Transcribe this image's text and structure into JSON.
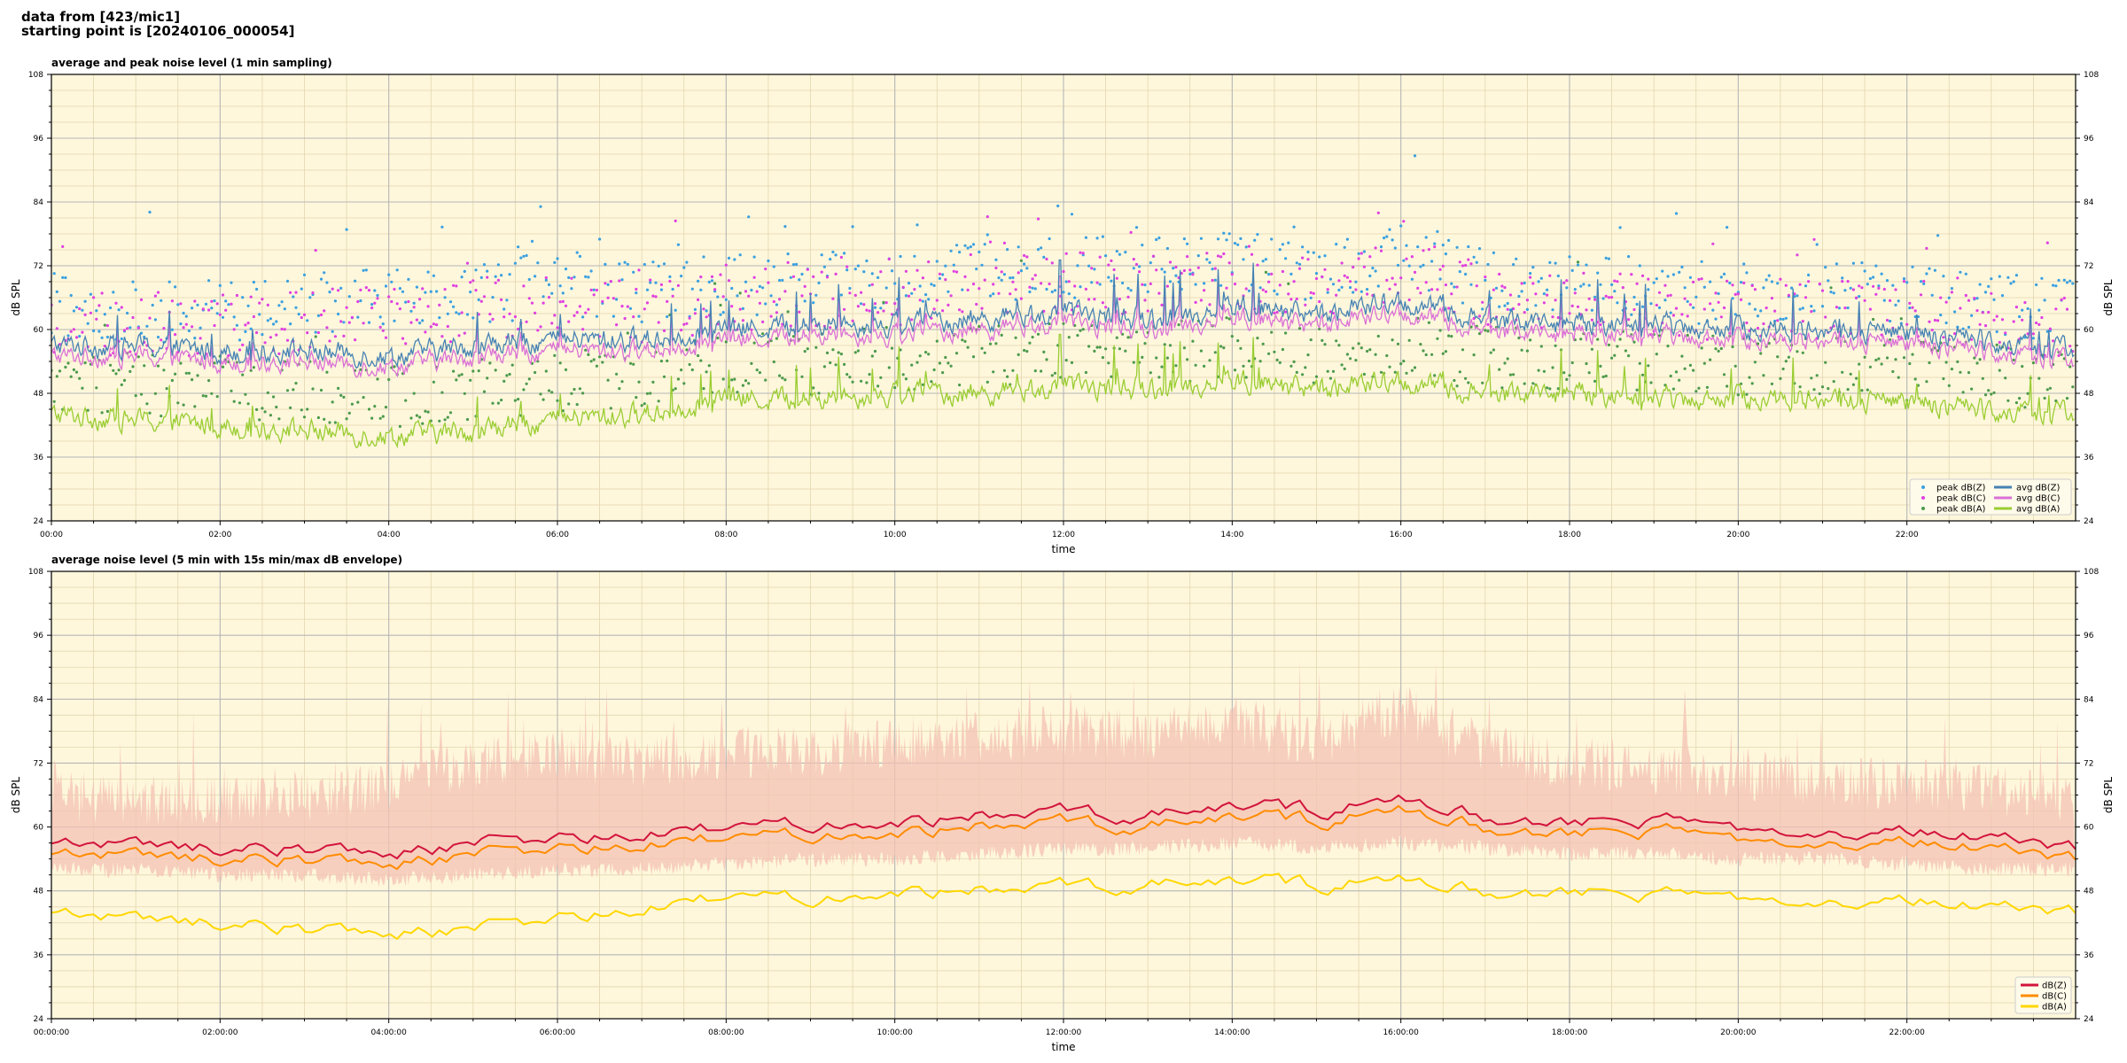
{
  "header": {
    "line1": "data from [423/mic1]",
    "line2": "starting point is [20240106_000054]"
  },
  "chart_data": [
    {
      "type": "line",
      "title": "average and peak noise level (1 min sampling)",
      "xlabel": "time",
      "ylabel": "dB SPL",
      "ylim": [
        24,
        108
      ],
      "xlim_hours": [
        0,
        24
      ],
      "yticks": [
        "24",
        "36",
        "48",
        "60",
        "72",
        "84",
        "96",
        "108"
      ],
      "xticks": [
        "00:00",
        "02:00",
        "04:00",
        "06:00",
        "08:00",
        "10:00",
        "12:00",
        "14:00",
        "16:00",
        "18:00",
        "20:00",
        "22:00"
      ],
      "grid": true,
      "background": "#fef7dc",
      "legend_position": "lower-right",
      "legend_columns": 2,
      "series": [
        {
          "name": "peak dB(Z)",
          "kind": "scatter",
          "color": "#3aa0e0",
          "x_hours": [
            0,
            1,
            2,
            3,
            4,
            5,
            6,
            7,
            8,
            9,
            10,
            11,
            12,
            13,
            14,
            15,
            16,
            17,
            18,
            19,
            20,
            21,
            22,
            23,
            24
          ],
          "values": [
            64,
            63,
            63,
            64,
            65,
            66,
            68,
            66,
            68,
            68,
            69,
            70,
            71,
            71,
            73,
            70,
            74,
            69,
            68,
            67,
            66,
            66,
            66,
            64,
            63
          ]
        },
        {
          "name": "peak dB(C)",
          "kind": "scatter",
          "color": "#e040e0",
          "x_hours": [
            0,
            1,
            2,
            3,
            4,
            5,
            6,
            7,
            8,
            9,
            10,
            11,
            12,
            13,
            14,
            15,
            16,
            17,
            18,
            19,
            20,
            21,
            22,
            23,
            24
          ],
          "values": [
            61,
            60,
            60,
            61,
            62,
            63,
            65,
            63,
            65,
            65,
            66,
            67,
            68,
            68,
            70,
            67,
            71,
            66,
            65,
            64,
            63,
            63,
            63,
            61,
            60
          ]
        },
        {
          "name": "peak dB(A)",
          "kind": "scatter",
          "color": "#4c9a4c",
          "x_hours": [
            0,
            1,
            2,
            3,
            4,
            5,
            6,
            7,
            8,
            9,
            10,
            11,
            12,
            13,
            14,
            15,
            16,
            17,
            18,
            19,
            20,
            21,
            22,
            23,
            24
          ],
          "values": [
            50,
            49,
            48,
            48,
            47,
            48,
            50,
            50,
            53,
            53,
            54,
            54,
            55,
            55,
            56,
            55,
            56,
            54,
            54,
            53,
            53,
            53,
            52,
            51,
            50
          ]
        },
        {
          "name": "avg dB(Z)",
          "kind": "line",
          "color": "#4682b4",
          "x_hours": [
            0,
            1,
            2,
            3,
            4,
            5,
            6,
            7,
            8,
            9,
            10,
            11,
            12,
            13,
            14,
            15,
            16,
            17,
            18,
            19,
            20,
            21,
            22,
            23,
            24
          ],
          "values": [
            57,
            57,
            56,
            56,
            55,
            57,
            58,
            58,
            60,
            61,
            61,
            62,
            63,
            62,
            64,
            63,
            65,
            62,
            61,
            61,
            60,
            60,
            59,
            58,
            56
          ]
        },
        {
          "name": "avg dB(C)",
          "kind": "line",
          "color": "#da70d6",
          "x_hours": [
            0,
            1,
            2,
            3,
            4,
            5,
            6,
            7,
            8,
            9,
            10,
            11,
            12,
            13,
            14,
            15,
            16,
            17,
            18,
            19,
            20,
            21,
            22,
            23,
            24
          ],
          "values": [
            55,
            55,
            54,
            54,
            53,
            55,
            56,
            56,
            58,
            59,
            59,
            60,
            61,
            60,
            62,
            61,
            63,
            60,
            59,
            59,
            58,
            58,
            57,
            56,
            54
          ]
        },
        {
          "name": "avg dB(A)",
          "kind": "line",
          "color": "#9acd32",
          "x_hours": [
            0,
            1,
            2,
            3,
            4,
            5,
            6,
            7,
            8,
            9,
            10,
            11,
            12,
            13,
            14,
            15,
            16,
            17,
            18,
            19,
            20,
            21,
            22,
            23,
            24
          ],
          "values": [
            44,
            43,
            42,
            41,
            40,
            41,
            43,
            44,
            47,
            47,
            48,
            48,
            49,
            49,
            50,
            49,
            50,
            48,
            48,
            47,
            47,
            47,
            46,
            45,
            44
          ]
        }
      ]
    },
    {
      "type": "line",
      "title": "average noise level (5 min with 15s min/max dB envelope)",
      "xlabel": "time",
      "ylabel": "dB SPL",
      "ylim": [
        24,
        108
      ],
      "xlim_hours": [
        0,
        24
      ],
      "yticks": [
        "24",
        "36",
        "48",
        "60",
        "72",
        "84",
        "96",
        "108"
      ],
      "xticks": [
        "00:00:00",
        "02:00:00",
        "04:00:00",
        "06:00:00",
        "08:00:00",
        "10:00:00",
        "12:00:00",
        "14:00:00",
        "16:00:00",
        "18:00:00",
        "20:00:00",
        "22:00:00"
      ],
      "grid": true,
      "background": "#fef7dc",
      "legend_position": "lower-right",
      "envelope": {
        "color": "#f4c2b4",
        "x_hours": [
          0,
          1,
          2,
          3,
          4,
          5,
          6,
          7,
          8,
          9,
          10,
          11,
          12,
          13,
          14,
          15,
          16,
          17,
          18,
          19,
          20,
          21,
          22,
          23,
          24
        ],
        "low": [
          52,
          52,
          51,
          51,
          50,
          51,
          52,
          52,
          53,
          54,
          54,
          55,
          56,
          56,
          57,
          56,
          57,
          56,
          55,
          55,
          54,
          54,
          53,
          52,
          52
        ],
        "high": [
          64,
          63,
          63,
          64,
          66,
          70,
          72,
          70,
          72,
          72,
          74,
          75,
          76,
          75,
          78,
          74,
          80,
          73,
          70,
          69,
          68,
          67,
          66,
          65,
          63
        ]
      },
      "series": [
        {
          "name": "dB(Z)",
          "color": "#d2143c",
          "x_hours": [
            0,
            1,
            2,
            3,
            4,
            5,
            6,
            7,
            8,
            9,
            10,
            11,
            12,
            13,
            14,
            15,
            16,
            17,
            18,
            19,
            20,
            21,
            22,
            23,
            24
          ],
          "values": [
            57,
            57,
            56,
            56,
            55,
            57,
            58,
            58,
            60,
            61,
            61,
            62,
            63,
            62,
            64,
            63,
            65,
            62,
            61,
            61,
            60,
            60,
            59,
            58,
            56
          ]
        },
        {
          "name": "dB(C)",
          "color": "#ff8c00",
          "x_hours": [
            0,
            1,
            2,
            3,
            4,
            5,
            6,
            7,
            8,
            9,
            10,
            11,
            12,
            13,
            14,
            15,
            16,
            17,
            18,
            19,
            20,
            21,
            22,
            23,
            24
          ],
          "values": [
            55,
            55,
            54,
            54,
            53,
            55,
            56,
            56,
            58,
            59,
            59,
            60,
            61,
            60,
            62,
            61,
            63,
            60,
            59,
            59,
            58,
            58,
            57,
            56,
            54
          ]
        },
        {
          "name": "dB(A)",
          "color": "#ffd700",
          "x_hours": [
            0,
            1,
            2,
            3,
            4,
            5,
            6,
            7,
            8,
            9,
            10,
            11,
            12,
            13,
            14,
            15,
            16,
            17,
            18,
            19,
            20,
            21,
            22,
            23,
            24
          ],
          "values": [
            44,
            43,
            42,
            41,
            40,
            41,
            43,
            44,
            47,
            47,
            48,
            48,
            49,
            49,
            50,
            49,
            50,
            48,
            48,
            47,
            47,
            47,
            46,
            45,
            44
          ]
        }
      ]
    }
  ]
}
